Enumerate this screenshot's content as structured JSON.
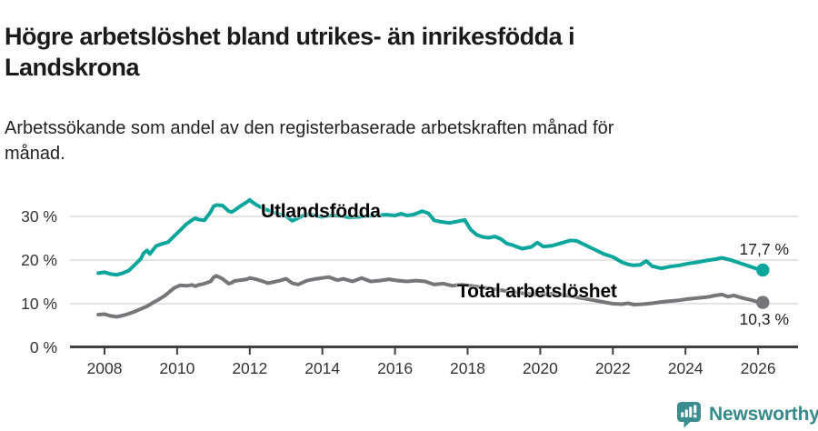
{
  "header": {
    "title": "Högre arbetslöshet bland utrikes- än inrikesfödda i\nLandskrona",
    "subtitle": "Arbetssökande som andel av den registerbaserade arbetskraften månad för\nmånad."
  },
  "chart_data": {
    "type": "line",
    "title": "Högre arbetslöshet bland utrikes- än inrikesfödda i Landskrona",
    "subtitle": "Arbetssökande som andel av den registerbaserade arbetskraften månad för månad.",
    "xlabel": "",
    "ylabel": "",
    "grid": "horizontal",
    "legend": "inline-labels-on-lines",
    "x_axis": {
      "range": [
        2007.6,
        2026.6
      ],
      "ticks": [
        2008,
        2010,
        2012,
        2014,
        2016,
        2018,
        2020,
        2022,
        2024,
        2026
      ],
      "tick_labels": [
        "2008",
        "2010",
        "2012",
        "2014",
        "2016",
        "2018",
        "2020",
        "2022",
        "2024",
        "2026"
      ]
    },
    "y_axis": {
      "range": [
        0,
        35
      ],
      "ticks": [
        0,
        10,
        20,
        30
      ],
      "tick_labels": [
        "0 %",
        "10 %",
        "20 %",
        "30 %"
      ],
      "unit": "%"
    },
    "colors": {
      "grid": "#dcdcdc",
      "axis": "#404040",
      "tick_label": "#333333"
    },
    "series": [
      {
        "id": "utlandsfodda",
        "name": "Utlandsfödda",
        "color": "#0aa59b",
        "end_value_label": "17,7 %",
        "points": [
          [
            2007.83,
            17.0
          ],
          [
            2008.0,
            17.2
          ],
          [
            2008.17,
            16.8
          ],
          [
            2008.33,
            16.6
          ],
          [
            2008.5,
            17.0
          ],
          [
            2008.67,
            17.6
          ],
          [
            2008.83,
            18.9
          ],
          [
            2009.0,
            20.3
          ],
          [
            2009.08,
            21.6
          ],
          [
            2009.17,
            22.2
          ],
          [
            2009.25,
            21.4
          ],
          [
            2009.42,
            23.2
          ],
          [
            2009.58,
            23.7
          ],
          [
            2009.75,
            24.1
          ],
          [
            2009.92,
            25.5
          ],
          [
            2010.08,
            26.8
          ],
          [
            2010.25,
            28.2
          ],
          [
            2010.42,
            29.2
          ],
          [
            2010.5,
            29.6
          ],
          [
            2010.58,
            29.3
          ],
          [
            2010.75,
            29.1
          ],
          [
            2010.92,
            31.0
          ],
          [
            2011.0,
            32.3
          ],
          [
            2011.08,
            32.6
          ],
          [
            2011.25,
            32.5
          ],
          [
            2011.42,
            31.2
          ],
          [
            2011.5,
            31.0
          ],
          [
            2011.58,
            31.4
          ],
          [
            2011.75,
            32.4
          ],
          [
            2011.92,
            33.3
          ],
          [
            2012.0,
            33.8
          ],
          [
            2012.08,
            33.2
          ],
          [
            2012.17,
            32.7
          ],
          [
            2012.33,
            32.0
          ],
          [
            2012.5,
            31.4
          ],
          [
            2012.67,
            30.9
          ],
          [
            2012.83,
            30.4
          ],
          [
            2013.0,
            30.1
          ],
          [
            2013.17,
            29.0
          ],
          [
            2013.33,
            29.6
          ],
          [
            2013.5,
            30.3
          ],
          [
            2013.67,
            30.5
          ],
          [
            2013.83,
            30.1
          ],
          [
            2014.0,
            29.9
          ],
          [
            2014.25,
            30.3
          ],
          [
            2014.5,
            30.1
          ],
          [
            2014.75,
            29.8
          ],
          [
            2015.0,
            29.9
          ],
          [
            2015.25,
            30.1
          ],
          [
            2015.5,
            30.2
          ],
          [
            2015.75,
            30.4
          ],
          [
            2016.0,
            30.2
          ],
          [
            2016.17,
            30.6
          ],
          [
            2016.33,
            30.2
          ],
          [
            2016.5,
            30.4
          ],
          [
            2016.75,
            31.2
          ],
          [
            2016.92,
            30.7
          ],
          [
            2017.08,
            29.1
          ],
          [
            2017.25,
            28.8
          ],
          [
            2017.5,
            28.5
          ],
          [
            2017.75,
            28.9
          ],
          [
            2017.92,
            29.2
          ],
          [
            2018.08,
            27.0
          ],
          [
            2018.25,
            25.8
          ],
          [
            2018.42,
            25.3
          ],
          [
            2018.58,
            25.1
          ],
          [
            2018.75,
            25.4
          ],
          [
            2018.92,
            24.8
          ],
          [
            2019.08,
            23.8
          ],
          [
            2019.25,
            23.4
          ],
          [
            2019.5,
            22.6
          ],
          [
            2019.75,
            23.0
          ],
          [
            2019.92,
            24.0
          ],
          [
            2020.08,
            23.1
          ],
          [
            2020.33,
            23.3
          ],
          [
            2020.58,
            23.9
          ],
          [
            2020.83,
            24.5
          ],
          [
            2021.0,
            24.4
          ],
          [
            2021.25,
            23.4
          ],
          [
            2021.5,
            22.4
          ],
          [
            2021.75,
            21.4
          ],
          [
            2022.0,
            20.7
          ],
          [
            2022.25,
            19.5
          ],
          [
            2022.42,
            19.0
          ],
          [
            2022.58,
            18.8
          ],
          [
            2022.75,
            18.9
          ],
          [
            2022.92,
            19.8
          ],
          [
            2023.08,
            18.6
          ],
          [
            2023.33,
            18.1
          ],
          [
            2023.58,
            18.5
          ],
          [
            2023.83,
            18.8
          ],
          [
            2024.08,
            19.2
          ],
          [
            2024.33,
            19.5
          ],
          [
            2024.58,
            19.9
          ],
          [
            2024.83,
            20.2
          ],
          [
            2025.0,
            20.5
          ],
          [
            2025.25,
            20.0
          ],
          [
            2025.5,
            19.3
          ],
          [
            2025.75,
            18.6
          ],
          [
            2026.0,
            17.9
          ],
          [
            2026.13,
            17.7
          ]
        ]
      },
      {
        "id": "total",
        "name": "Total arbetslöshet",
        "color": "#76767a",
        "end_value_label": "10,3 %",
        "points": [
          [
            2007.83,
            7.5
          ],
          [
            2008.0,
            7.6
          ],
          [
            2008.17,
            7.2
          ],
          [
            2008.33,
            7.0
          ],
          [
            2008.5,
            7.3
          ],
          [
            2008.67,
            7.7
          ],
          [
            2008.83,
            8.2
          ],
          [
            2009.0,
            8.8
          ],
          [
            2009.17,
            9.4
          ],
          [
            2009.33,
            10.2
          ],
          [
            2009.5,
            11.0
          ],
          [
            2009.67,
            11.9
          ],
          [
            2009.83,
            13.0
          ],
          [
            2009.92,
            13.6
          ],
          [
            2010.08,
            14.2
          ],
          [
            2010.25,
            14.1
          ],
          [
            2010.42,
            14.3
          ],
          [
            2010.5,
            14.0
          ],
          [
            2010.58,
            14.3
          ],
          [
            2010.75,
            14.6
          ],
          [
            2010.92,
            15.1
          ],
          [
            2011.0,
            16.0
          ],
          [
            2011.08,
            16.4
          ],
          [
            2011.25,
            15.7
          ],
          [
            2011.42,
            14.6
          ],
          [
            2011.5,
            14.8
          ],
          [
            2011.58,
            15.2
          ],
          [
            2011.75,
            15.4
          ],
          [
            2011.92,
            15.6
          ],
          [
            2012.0,
            15.9
          ],
          [
            2012.17,
            15.6
          ],
          [
            2012.33,
            15.2
          ],
          [
            2012.5,
            14.7
          ],
          [
            2012.67,
            15.0
          ],
          [
            2012.83,
            15.3
          ],
          [
            2013.0,
            15.7
          ],
          [
            2013.17,
            14.7
          ],
          [
            2013.33,
            14.4
          ],
          [
            2013.58,
            15.3
          ],
          [
            2013.83,
            15.7
          ],
          [
            2014.0,
            15.9
          ],
          [
            2014.17,
            16.1
          ],
          [
            2014.42,
            15.4
          ],
          [
            2014.58,
            15.7
          ],
          [
            2014.83,
            15.1
          ],
          [
            2015.08,
            15.9
          ],
          [
            2015.33,
            15.1
          ],
          [
            2015.58,
            15.3
          ],
          [
            2015.83,
            15.6
          ],
          [
            2016.08,
            15.3
          ],
          [
            2016.33,
            15.1
          ],
          [
            2016.58,
            15.3
          ],
          [
            2016.83,
            15.1
          ],
          [
            2017.08,
            14.4
          ],
          [
            2017.33,
            14.6
          ],
          [
            2017.58,
            14.1
          ],
          [
            2017.83,
            14.4
          ],
          [
            2018.0,
            14.2
          ],
          [
            2018.5,
            13.6
          ],
          [
            2019.0,
            13.0
          ],
          [
            2019.5,
            12.4
          ],
          [
            2020.0,
            12.0
          ],
          [
            2020.33,
            12.3
          ],
          [
            2020.67,
            12.0
          ],
          [
            2021.0,
            11.5
          ],
          [
            2021.33,
            11.0
          ],
          [
            2021.67,
            10.5
          ],
          [
            2022.0,
            10.0
          ],
          [
            2022.25,
            9.9
          ],
          [
            2022.42,
            10.1
          ],
          [
            2022.58,
            9.8
          ],
          [
            2022.83,
            9.9
          ],
          [
            2023.08,
            10.1
          ],
          [
            2023.33,
            10.4
          ],
          [
            2023.58,
            10.6
          ],
          [
            2023.83,
            10.8
          ],
          [
            2024.08,
            11.1
          ],
          [
            2024.33,
            11.3
          ],
          [
            2024.58,
            11.5
          ],
          [
            2024.83,
            11.9
          ],
          [
            2025.0,
            12.1
          ],
          [
            2025.17,
            11.6
          ],
          [
            2025.33,
            11.9
          ],
          [
            2025.58,
            11.3
          ],
          [
            2025.83,
            10.8
          ],
          [
            2026.0,
            10.4
          ],
          [
            2026.13,
            10.3
          ]
        ]
      }
    ],
    "annotations": {
      "utlandsfodda_label": "Utlandsfödda",
      "total_label": "Total arbetslöshet",
      "utlandsfodda_end_value": "17,7 %",
      "total_end_value": "10,3 %"
    }
  },
  "footer": {
    "brand": "Newsworthy",
    "logo_icon": "newsworthy-chart-bubble-icon",
    "logo_color": "#3a8c8e",
    "text_color": "#38898b"
  }
}
